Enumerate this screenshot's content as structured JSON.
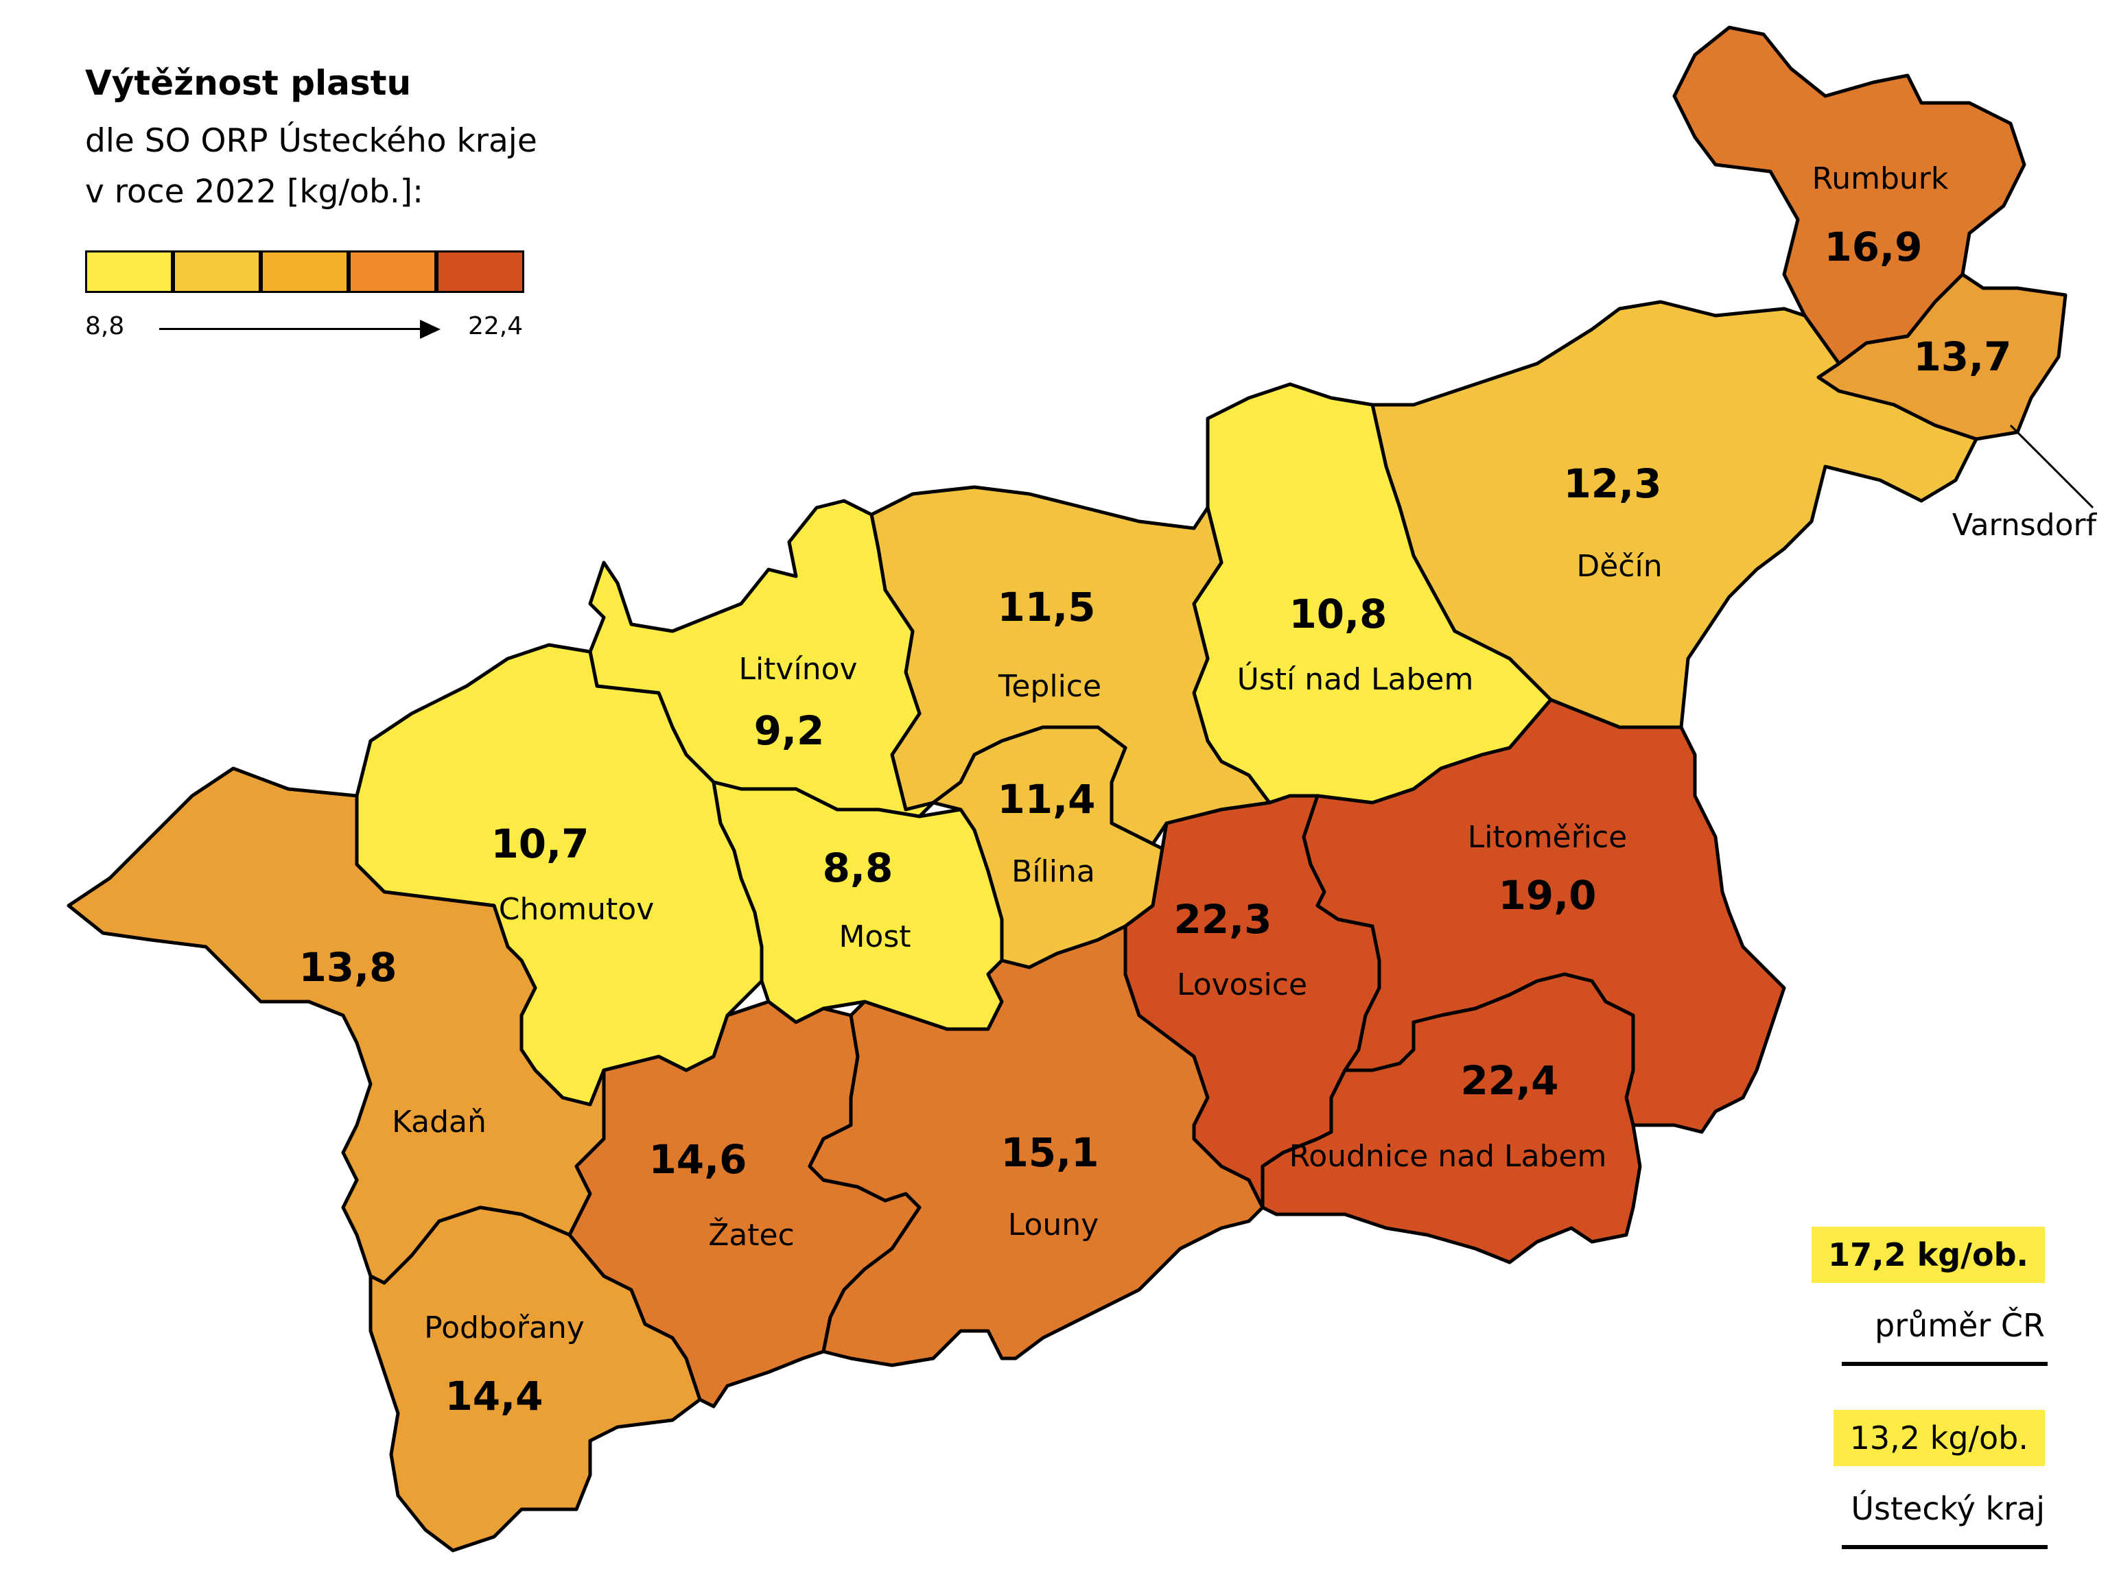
{
  "legend": {
    "title": "Výtěžnost plastu",
    "subtitle_line1": "dle SO ORP Ústeckého kraje",
    "subtitle_line2": "v roce 2022 [kg/ob.]:",
    "scale_min": "8,8",
    "scale_max": "22,4",
    "scale_colors": [
      "#FDEB45",
      "#F7C93C",
      "#F5B12A",
      "#F08A2A",
      "#D4511E"
    ]
  },
  "colors": {
    "c1": "#FDEB45",
    "c2": "#F3C33F",
    "c3": "#EBA035",
    "c4": "#DF7A2C",
    "c5": "#D24F22",
    "badge_cr": "#FDEB45",
    "badge_kraj": "#FDEB45"
  },
  "regions": [
    {
      "name": "Rumburk",
      "value": "16,9"
    },
    {
      "name": "Varnsdorf",
      "value": "13,7"
    },
    {
      "name": "Děčín",
      "value": "12,3"
    },
    {
      "name": "Ústí nad Labem",
      "value": "10,8"
    },
    {
      "name": "Teplice",
      "value": "11,5"
    },
    {
      "name": "Litvínov",
      "value": "9,2"
    },
    {
      "name": "Bílina",
      "value": "11,4"
    },
    {
      "name": "Chomutov",
      "value": "10,7"
    },
    {
      "name": "Most",
      "value": "8,8"
    },
    {
      "name": "Kadaň",
      "value": "13,8"
    },
    {
      "name": "Lovosice",
      "value": "22,3"
    },
    {
      "name": "Litoměřice",
      "value": "19,0"
    },
    {
      "name": "Roudnice nad Labem",
      "value": "22,4"
    },
    {
      "name": "Žatec",
      "value": "14,6"
    },
    {
      "name": "Louny",
      "value": "15,1"
    },
    {
      "name": "Podbořany",
      "value": "14,4"
    }
  ],
  "stats": {
    "cr_value": "17,2 kg/ob.",
    "cr_label": "průměr ČR",
    "kraj_value": "13,2 kg/ob.",
    "kraj_label": "Ústecký kraj"
  }
}
